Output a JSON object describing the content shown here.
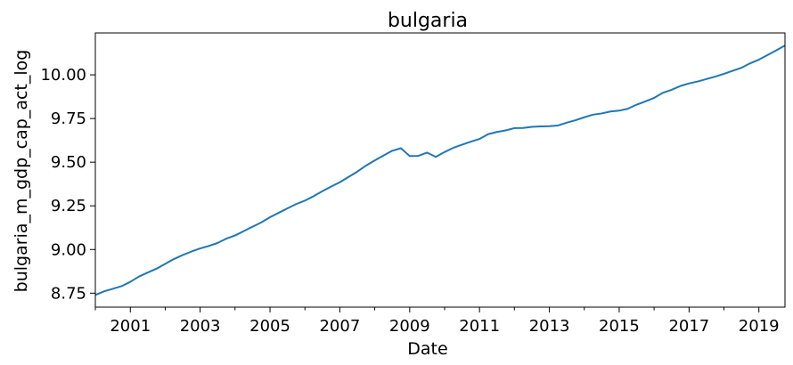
{
  "chart_data": {
    "type": "line",
    "title": "bulgaria",
    "xlabel": "Date",
    "ylabel": "bulgaria_m_gdp_cap_act_log",
    "xlim": [
      "2000-01-01",
      "2019-10-01"
    ],
    "ylim": [
      8.67,
      10.24
    ],
    "x_ticks": [
      "2001",
      "2003",
      "2005",
      "2007",
      "2009",
      "2011",
      "2013",
      "2015",
      "2017",
      "2019"
    ],
    "y_ticks": [
      "8.75",
      "9.00",
      "9.25",
      "9.50",
      "9.75",
      "10.00"
    ],
    "grid": false,
    "line_color": "#1f77b4",
    "series": [
      {
        "x": [
          "2000-01-01",
          "2000-04-01",
          "2000-07-01",
          "2000-10-01",
          "2001-01-01",
          "2001-04-01",
          "2001-07-01",
          "2001-10-01",
          "2002-01-01",
          "2002-04-01",
          "2002-07-01",
          "2002-10-01",
          "2003-01-01",
          "2003-04-01",
          "2003-07-01",
          "2003-10-01",
          "2004-01-01",
          "2004-04-01",
          "2004-07-01",
          "2004-10-01",
          "2005-01-01",
          "2005-04-01",
          "2005-07-01",
          "2005-10-01",
          "2006-01-01",
          "2006-04-01",
          "2006-07-01",
          "2006-10-01",
          "2007-01-01",
          "2007-04-01",
          "2007-07-01",
          "2007-10-01",
          "2008-01-01",
          "2008-04-01",
          "2008-07-01",
          "2008-10-01",
          "2009-01-01",
          "2009-04-01",
          "2009-07-01",
          "2009-10-01",
          "2010-01-01",
          "2010-04-01",
          "2010-07-01",
          "2010-10-01",
          "2011-01-01",
          "2011-04-01",
          "2011-07-01",
          "2011-10-01",
          "2012-01-01",
          "2012-04-01",
          "2012-07-01",
          "2012-10-01",
          "2013-01-01",
          "2013-04-01",
          "2013-07-01",
          "2013-10-01",
          "2014-01-01",
          "2014-04-01",
          "2014-07-01",
          "2014-10-01",
          "2015-01-01",
          "2015-04-01",
          "2015-07-01",
          "2015-10-01",
          "2016-01-01",
          "2016-04-01",
          "2016-07-01",
          "2016-10-01",
          "2017-01-01",
          "2017-04-01",
          "2017-07-01",
          "2017-10-01",
          "2018-01-01",
          "2018-04-01",
          "2018-07-01",
          "2018-10-01",
          "2019-01-01",
          "2019-04-01",
          "2019-07-01",
          "2019-10-01"
        ],
        "values": [
          8.74,
          8.76,
          8.775,
          8.79,
          8.815,
          8.845,
          8.868,
          8.89,
          8.918,
          8.945,
          8.968,
          8.988,
          9.006,
          9.02,
          9.037,
          9.062,
          9.08,
          9.105,
          9.13,
          9.155,
          9.185,
          9.21,
          9.235,
          9.26,
          9.28,
          9.305,
          9.333,
          9.36,
          9.385,
          9.415,
          9.445,
          9.48,
          9.51,
          9.538,
          9.565,
          9.58,
          9.535,
          9.536,
          9.555,
          9.53,
          9.558,
          9.582,
          9.6,
          9.617,
          9.633,
          9.66,
          9.673,
          9.682,
          9.695,
          9.696,
          9.702,
          9.705,
          9.706,
          9.71,
          9.726,
          9.74,
          9.757,
          9.772,
          9.779,
          9.79,
          9.795,
          9.806,
          9.829,
          9.848,
          9.868,
          9.897,
          9.914,
          9.936,
          9.951,
          9.962,
          9.976,
          9.99,
          10.006,
          10.023,
          10.04,
          10.066,
          10.087,
          10.113,
          10.14,
          10.168
        ]
      }
    ]
  }
}
